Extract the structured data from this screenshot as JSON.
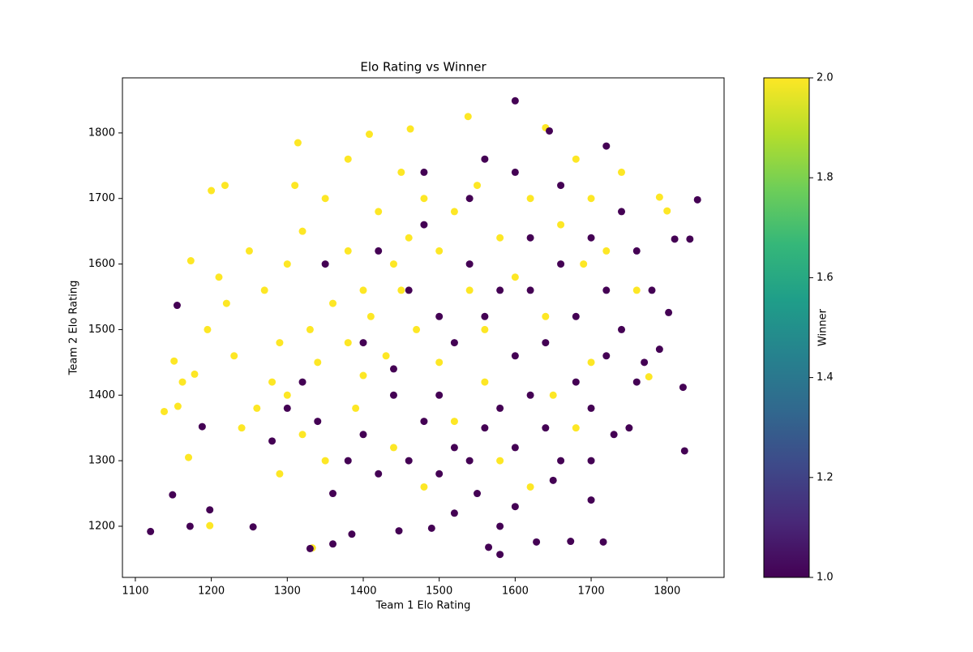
{
  "chart_data": {
    "type": "scatter",
    "title": "Elo Rating vs Winner",
    "x_label": "Team 1 Elo Rating",
    "y_label": "Team 2 Elo Rating",
    "xlim": [
      1083,
      1875
    ],
    "ylim": [
      1122,
      1884
    ],
    "xticks": [
      1100,
      1200,
      1300,
      1400,
      1500,
      1600,
      1700,
      1800
    ],
    "yticks": [
      1200,
      1300,
      1400,
      1500,
      1600,
      1700,
      1800
    ],
    "colorbar": {
      "label": "Winner",
      "clim": [
        1,
        2
      ],
      "ticks": [
        {
          "value": 1,
          "label": "1.0"
        },
        {
          "value": 1.2,
          "label": "1.2"
        },
        {
          "value": 1.4,
          "label": "1.4"
        },
        {
          "value": 1.6,
          "label": "1.6"
        },
        {
          "value": 1.8,
          "label": "1.8"
        },
        {
          "value": 2,
          "label": "2.0"
        }
      ],
      "colorscale": [
        "#440154",
        "#482878",
        "#3e4989",
        "#31688e",
        "#26828e",
        "#1f9e89",
        "#35b779",
        "#6ece58",
        "#b5de2b",
        "#fde725"
      ]
    },
    "series": [
      {
        "color_value": 2,
        "x": [
          1138,
          1538,
          1462,
          1640,
          1333,
          1198,
          1200,
          1218,
          1314,
          1408,
          1800,
          1790,
          1776,
          1170,
          1173,
          1151,
          1162,
          1178,
          1195,
          1156,
          1300,
          1320,
          1350,
          1380,
          1400,
          1420,
          1440,
          1460,
          1480,
          1360,
          1330,
          1290,
          1270,
          1250,
          1310,
          1340,
          1380,
          1410,
          1450,
          1500,
          1520,
          1550,
          1580,
          1620,
          1660,
          1700,
          1740,
          1680,
          1720,
          1760,
          1280,
          1260,
          1240,
          1300,
          1320,
          1350,
          1290,
          1400,
          1430,
          1470,
          1500,
          1540,
          1560,
          1600,
          1640,
          1690,
          1700,
          1650,
          1230,
          1220,
          1210,
          1380,
          1450,
          1390,
          1440,
          1520,
          1580,
          1560,
          1480,
          1620,
          1680
        ],
        "values": [
          1375,
          1825,
          1806,
          1808,
          1167,
          1201,
          1712,
          1720,
          1785,
          1798,
          1681,
          1702,
          1428,
          1305,
          1605,
          1452,
          1420,
          1432,
          1500,
          1383,
          1600,
          1650,
          1700,
          1620,
          1560,
          1680,
          1600,
          1640,
          1700,
          1540,
          1500,
          1480,
          1560,
          1620,
          1720,
          1450,
          1480,
          1520,
          1560,
          1620,
          1680,
          1720,
          1640,
          1700,
          1660,
          1700,
          1740,
          1760,
          1620,
          1560,
          1420,
          1380,
          1350,
          1400,
          1340,
          1300,
          1280,
          1430,
          1460,
          1500,
          1450,
          1560,
          1500,
          1580,
          1520,
          1600,
          1450,
          1400,
          1460,
          1540,
          1580,
          1760,
          1740,
          1380,
          1320,
          1360,
          1300,
          1420,
          1260,
          1260,
          1350
        ]
      },
      {
        "color_value": 1,
        "x": [
          1120,
          1155,
          1600,
          1840,
          1823,
          1821,
          1645,
          1330,
          1580,
          1149,
          1172,
          1198,
          1830,
          1810,
          1802,
          1628,
          1673,
          1716,
          1565,
          1490,
          1447,
          1360,
          1385,
          1255,
          1188,
          1500,
          1520,
          1540,
          1560,
          1580,
          1600,
          1620,
          1640,
          1660,
          1680,
          1700,
          1720,
          1740,
          1760,
          1600,
          1560,
          1520,
          1480,
          1460,
          1440,
          1420,
          1400,
          1380,
          1360,
          1340,
          1320,
          1300,
          1280,
          1540,
          1580,
          1620,
          1660,
          1700,
          1740,
          1760,
          1780,
          1680,
          1640,
          1720,
          1460,
          1420,
          1480,
          1540,
          1600,
          1660,
          1500,
          1550,
          1600,
          1650,
          1700,
          1750,
          1770,
          1790,
          1620,
          1350,
          1400,
          1440,
          1500,
          1520,
          1580,
          1700,
          1730,
          1480,
          1560,
          1720
        ],
        "values": [
          1192,
          1537,
          1849,
          1698,
          1315,
          1412,
          1803,
          1166,
          1157,
          1248,
          1200,
          1225,
          1638,
          1638,
          1526,
          1176,
          1177,
          1176,
          1168,
          1197,
          1193,
          1173,
          1188,
          1199,
          1352,
          1400,
          1320,
          1300,
          1350,
          1380,
          1320,
          1400,
          1350,
          1300,
          1420,
          1380,
          1460,
          1500,
          1420,
          1460,
          1520,
          1480,
          1360,
          1300,
          1400,
          1280,
          1340,
          1300,
          1250,
          1360,
          1420,
          1380,
          1330,
          1600,
          1560,
          1640,
          1600,
          1640,
          1680,
          1620,
          1560,
          1520,
          1480,
          1560,
          1560,
          1620,
          1660,
          1700,
          1740,
          1720,
          1520,
          1250,
          1230,
          1270,
          1300,
          1350,
          1450,
          1470,
          1560,
          1600,
          1480,
          1440,
          1280,
          1220,
          1200,
          1240,
          1340,
          1740,
          1760,
          1780
        ]
      }
    ]
  }
}
